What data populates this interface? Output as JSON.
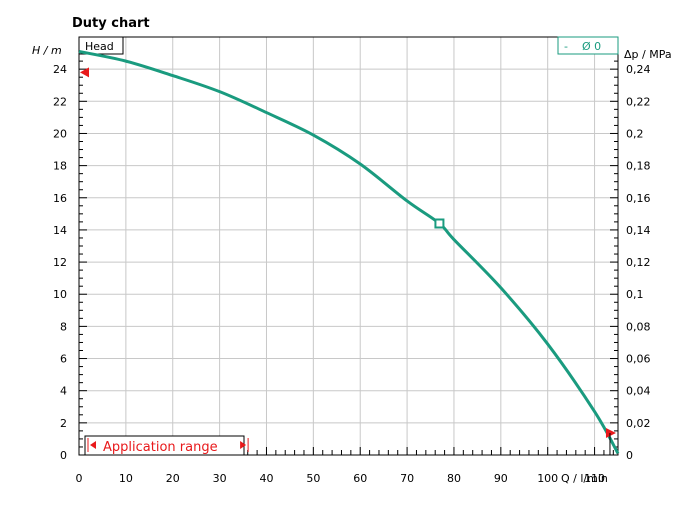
{
  "chart_data": {
    "type": "line",
    "title": "Duty chart",
    "y_label": "H / m",
    "x_label": "Q / l/min",
    "y2_label": "Δp / MPa",
    "legend_head": "Head",
    "legend_diameter": "Ø 0",
    "legend_dash": "-",
    "application_range_label": "Application range",
    "xlim": [
      0,
      115
    ],
    "ylim": [
      0,
      26
    ],
    "y2lim": [
      0,
      0.26
    ],
    "x_ticks": [
      0,
      10,
      20,
      30,
      40,
      50,
      60,
      70,
      80,
      90,
      100,
      110
    ],
    "y_ticks": [
      0,
      2,
      4,
      6,
      8,
      10,
      12,
      14,
      16,
      18,
      20,
      22,
      24
    ],
    "y2_ticks": [
      "0",
      "0,02",
      "0,04",
      "0,06",
      "0,08",
      "0,1",
      "0,12",
      "0,14",
      "0,16",
      "0,18",
      "0,2",
      "0,22",
      "0,24"
    ],
    "series": [
      {
        "name": "Head",
        "color": "#1a9b7f",
        "x": [
          0,
          10,
          20,
          30,
          40,
          50,
          60,
          70,
          76.9,
          80,
          90,
          100,
          110,
          115
        ],
        "y": [
          25.1,
          24.5,
          23.6,
          22.6,
          21.3,
          19.9,
          18.1,
          15.8,
          14.4,
          13.4,
          10.4,
          6.9,
          2.7,
          0.1
        ]
      }
    ],
    "operating_point": {
      "x": 76.9,
      "y": 14.4
    },
    "application_range": [
      0,
      38
    ],
    "markers": {
      "y_marker": 23.8,
      "x_marker": 113.5
    }
  },
  "colors": {
    "curve": "#1a9b7f",
    "marker": "#e8191b",
    "grid": "#c8c8c8"
  }
}
